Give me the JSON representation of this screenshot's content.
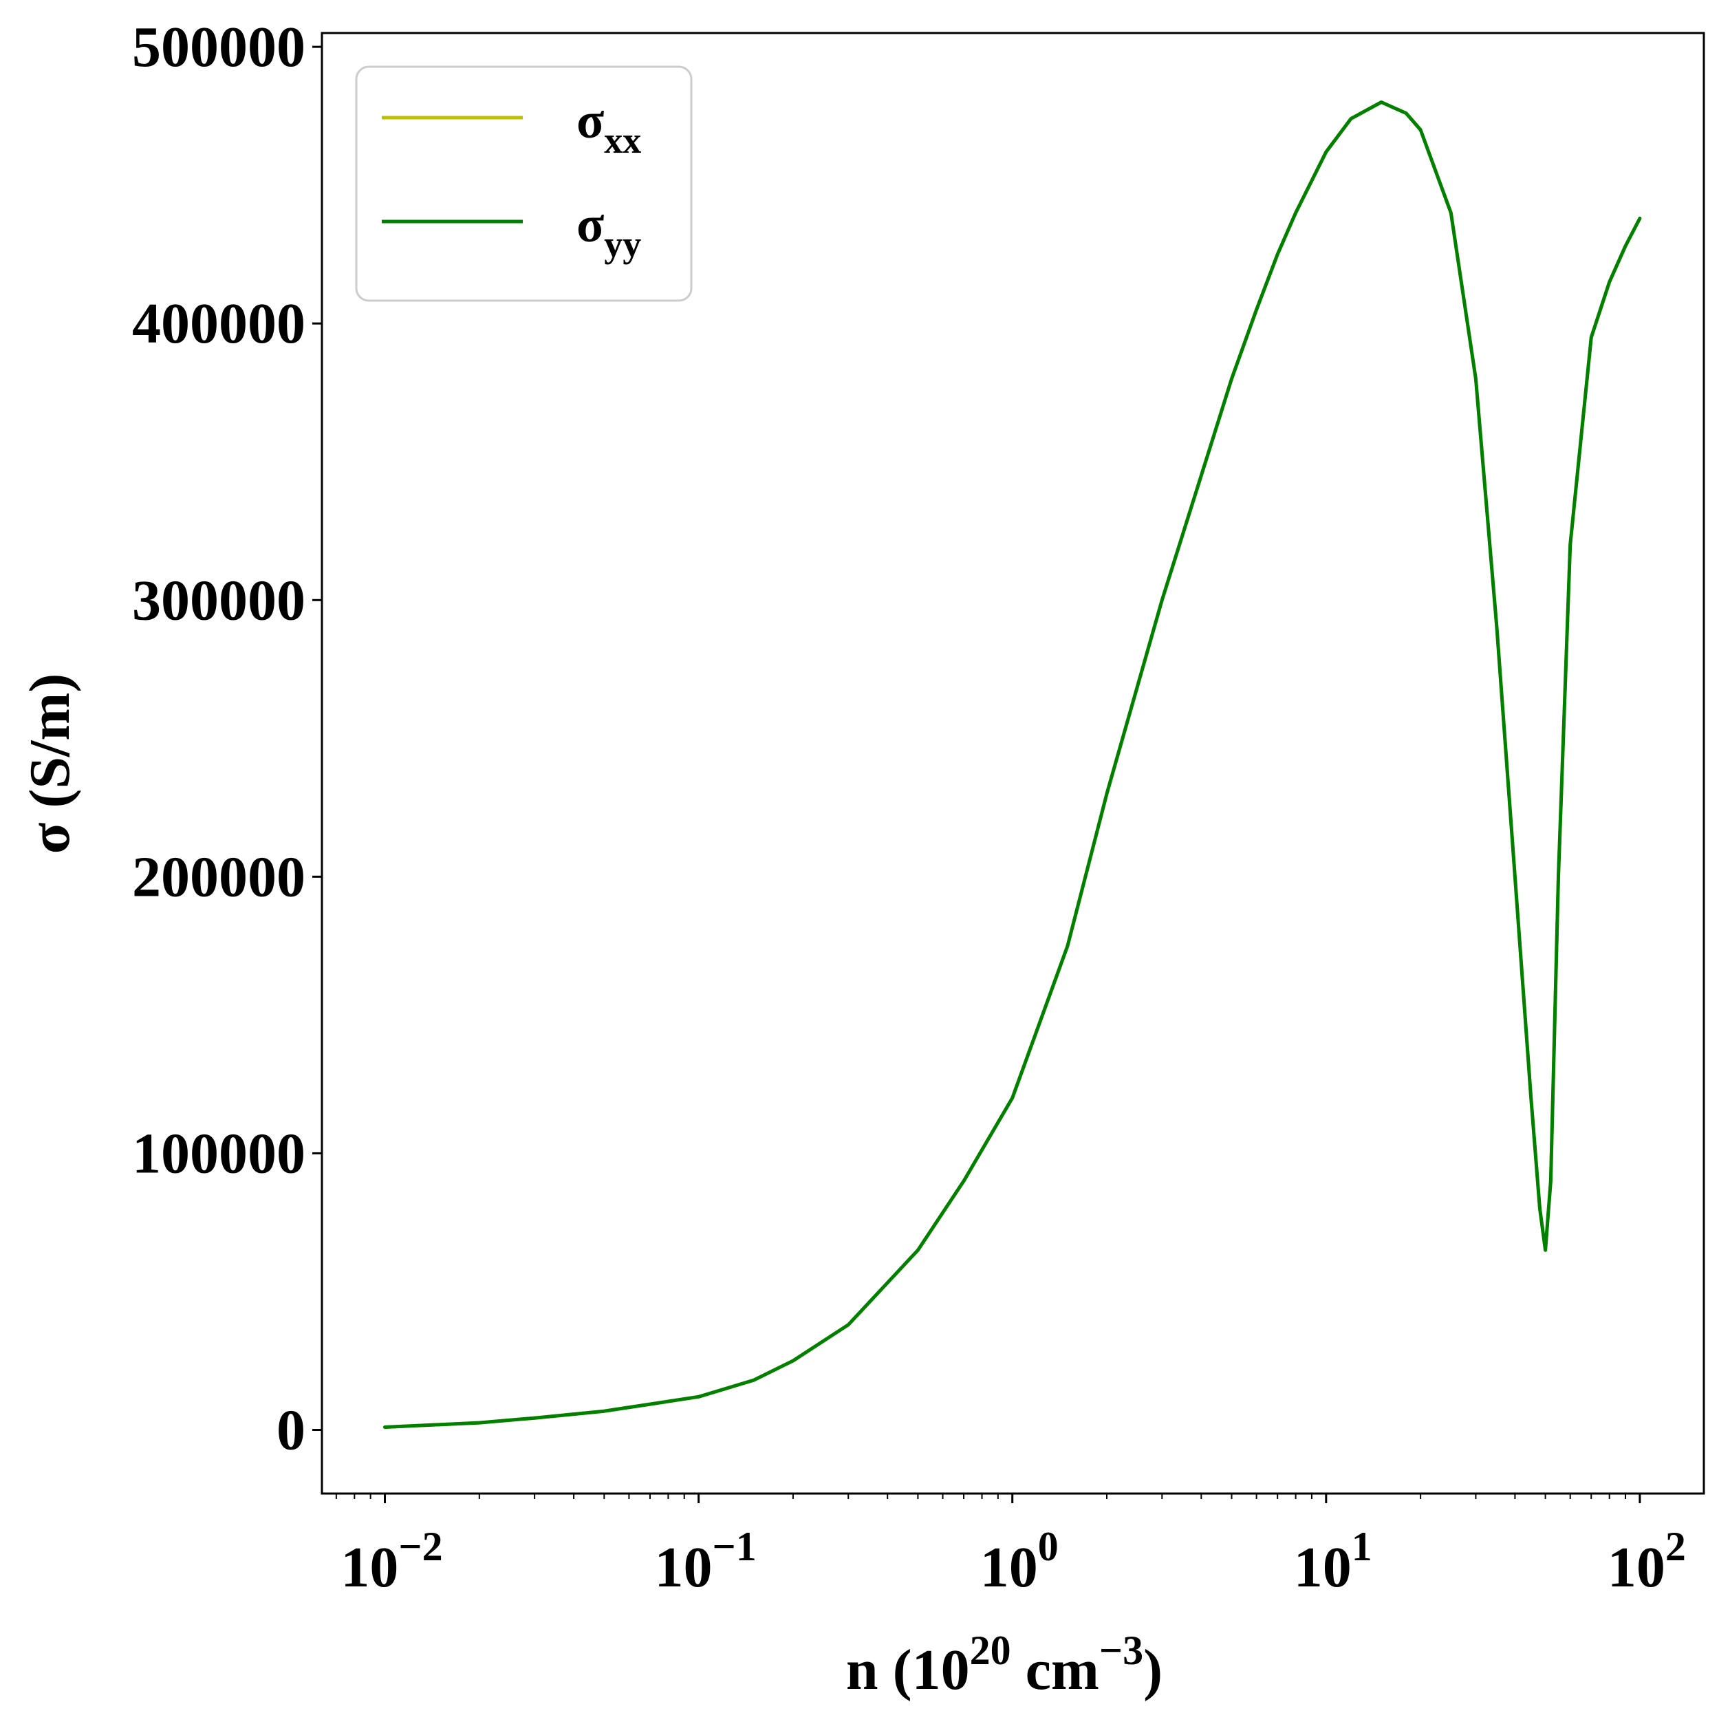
{
  "chart_data": {
    "type": "line",
    "title": "",
    "xlabel": {
      "base": "n (10",
      "sup1": "20",
      "mid": " cm",
      "sup2": "−3",
      "end": ")"
    },
    "ylabel": "σ (S/m)",
    "xscale": "log",
    "xlim": [
      0.0063,
      160
    ],
    "ylim": [
      -23000,
      505000
    ],
    "grid": false,
    "legend_placement": "top-left",
    "x_ticks": [
      {
        "value": 0.01,
        "base": "10",
        "exp": "−2"
      },
      {
        "value": 0.1,
        "base": "10",
        "exp": "−1"
      },
      {
        "value": 1,
        "base": "10",
        "exp": "0"
      },
      {
        "value": 10,
        "base": "10",
        "exp": "1"
      },
      {
        "value": 100,
        "base": "10",
        "exp": "2"
      }
    ],
    "y_ticks": [
      {
        "value": 0,
        "label": "0"
      },
      {
        "value": 100000,
        "label": "100000"
      },
      {
        "value": 200000,
        "label": "200000"
      },
      {
        "value": 300000,
        "label": "300000"
      },
      {
        "value": 400000,
        "label": "400000"
      },
      {
        "value": 500000,
        "label": "500000"
      }
    ],
    "series": [
      {
        "name": {
          "base": "σ",
          "sub": "xx"
        },
        "color": "#bfbf00",
        "x": [
          0.01,
          0.02,
          0.03,
          0.05,
          0.07,
          0.1,
          0.15,
          0.2,
          0.3,
          0.5,
          0.7,
          1.0,
          1.5,
          2.0,
          3.0,
          4.0,
          5.0,
          6.0,
          7.0,
          8.0,
          10.0,
          12.0,
          15.0,
          18.0,
          20.0,
          25.0,
          30.0,
          35.0,
          40.0,
          45.0,
          48.0,
          50.0,
          52.0,
          55.0,
          60.0,
          70.0,
          80.0,
          90.0,
          100.0
        ],
        "y": [
          1000,
          2600,
          4300,
          6800,
          9300,
          12000,
          18000,
          25000,
          38000,
          65000,
          90000,
          120000,
          175000,
          230000,
          300000,
          345000,
          380000,
          405000,
          425000,
          440000,
          462000,
          474000,
          480000,
          476000,
          470000,
          440000,
          380000,
          290000,
          200000,
          120000,
          80000,
          65000,
          90000,
          200000,
          320000,
          395000,
          415000,
          428000,
          438000
        ]
      },
      {
        "name": {
          "base": "σ",
          "sub": "yy"
        },
        "color": "#008000",
        "x": [
          0.01,
          0.02,
          0.03,
          0.05,
          0.07,
          0.1,
          0.15,
          0.2,
          0.3,
          0.5,
          0.7,
          1.0,
          1.5,
          2.0,
          3.0,
          4.0,
          5.0,
          6.0,
          7.0,
          8.0,
          10.0,
          12.0,
          15.0,
          18.0,
          20.0,
          25.0,
          30.0,
          35.0,
          40.0,
          45.0,
          48.0,
          50.0,
          52.0,
          55.0,
          60.0,
          70.0,
          80.0,
          90.0,
          100.0
        ],
        "y": [
          1000,
          2600,
          4300,
          6800,
          9300,
          12000,
          18000,
          25000,
          38000,
          65000,
          90000,
          120000,
          175000,
          230000,
          300000,
          345000,
          380000,
          405000,
          425000,
          440000,
          462000,
          474000,
          480000,
          476000,
          470000,
          440000,
          380000,
          290000,
          200000,
          120000,
          80000,
          65000,
          90000,
          200000,
          320000,
          395000,
          415000,
          428000,
          438000
        ]
      }
    ]
  }
}
